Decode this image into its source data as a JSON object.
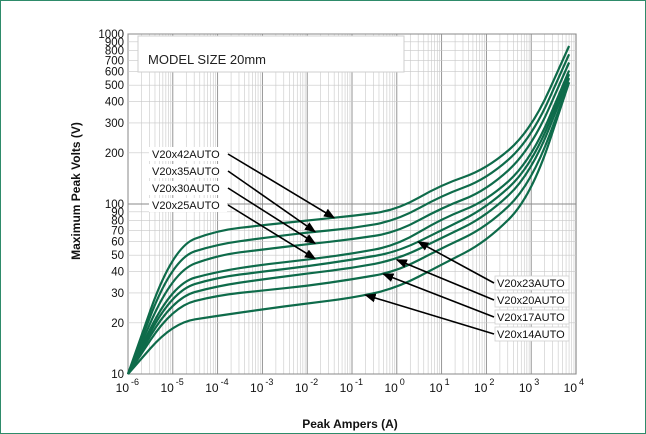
{
  "chart_data": {
    "type": "line",
    "title": "",
    "box_label": "MODEL SIZE 20mm",
    "xlabel": "Peak Ampers (A)",
    "ylabel": "Maximum Peak Volts (V)",
    "x_scale": "log",
    "y_scale": "log",
    "xlim": [
      1e-06,
      10000.0
    ],
    "ylim": [
      10,
      1000
    ],
    "grid": true,
    "line_color": "#0e6b4a",
    "frame_color": "#2e8b6a",
    "x_ticks": [
      {
        "v": 1e-06,
        "base": "10",
        "exp": "-6"
      },
      {
        "v": 1e-05,
        "base": "10",
        "exp": "-5"
      },
      {
        "v": 0.0001,
        "base": "10",
        "exp": "-4"
      },
      {
        "v": 0.001,
        "base": "10",
        "exp": "-3"
      },
      {
        "v": 0.01,
        "base": "10",
        "exp": "-2"
      },
      {
        "v": 0.1,
        "base": "10",
        "exp": "-1"
      },
      {
        "v": 1,
        "base": "10",
        "exp": "0"
      },
      {
        "v": 10,
        "base": "10",
        "exp": "1"
      },
      {
        "v": 100,
        "base": "10",
        "exp": "2"
      },
      {
        "v": 1000,
        "base": "10",
        "exp": "3"
      },
      {
        "v": 10000,
        "base": "10",
        "exp": "4"
      }
    ],
    "y_ticks": [
      {
        "v": 10,
        "label": "10"
      },
      {
        "v": 20,
        "label": "20"
      },
      {
        "v": 30,
        "label": "30"
      },
      {
        "v": 40,
        "label": "40"
      },
      {
        "v": 50,
        "label": "50"
      },
      {
        "v": 60,
        "label": "60"
      },
      {
        "v": 70,
        "label": "70"
      },
      {
        "v": 80,
        "label": "80"
      },
      {
        "v": 90,
        "label": "90"
      },
      {
        "v": 100,
        "label": "100"
      },
      {
        "v": 200,
        "label": "200"
      },
      {
        "v": 300,
        "label": "300"
      },
      {
        "v": 400,
        "label": "400"
      },
      {
        "v": 500,
        "label": "500"
      },
      {
        "v": 600,
        "label": "600"
      },
      {
        "v": 700,
        "label": "700"
      },
      {
        "v": 800,
        "label": "800"
      },
      {
        "v": 900,
        "label": "900"
      },
      {
        "v": 1000,
        "label": "1000"
      }
    ],
    "series": [
      {
        "name": "V20x42AUTO",
        "x": [
          1e-06,
          1e-05,
          0.0001,
          0.001,
          0.01,
          0.1,
          1,
          10,
          100,
          1000,
          7000
        ],
        "y": [
          10,
          56,
          70,
          75,
          80,
          85,
          92,
          130,
          160,
          270,
          850
        ],
        "label_side": "left",
        "label_anchor": 0.04,
        "label_order": 0
      },
      {
        "name": "V20x35AUTO",
        "x": [
          1e-06,
          1e-05,
          0.0001,
          0.001,
          0.01,
          0.1,
          1,
          10,
          100,
          1000,
          7000
        ],
        "y": [
          10,
          48,
          58,
          63,
          68,
          72,
          80,
          112,
          140,
          240,
          760
        ],
        "label_side": "left",
        "label_anchor": 0.015,
        "label_order": 1
      },
      {
        "name": "V20x30AUTO",
        "x": [
          1e-06,
          1e-05,
          0.0001,
          0.001,
          0.01,
          0.1,
          1,
          10,
          100,
          1000,
          7000
        ],
        "y": [
          10,
          40,
          50,
          54,
          58,
          62,
          68,
          95,
          120,
          210,
          680
        ],
        "label_side": "left",
        "label_anchor": 0.015,
        "label_order": 2
      },
      {
        "name": "V20x25AUTO",
        "x": [
          1e-06,
          1e-05,
          0.0001,
          0.001,
          0.01,
          0.1,
          1,
          10,
          100,
          1000,
          7000
        ],
        "y": [
          10,
          34,
          40,
          44,
          47,
          51,
          57,
          82,
          104,
          180,
          610
        ],
        "label_side": "left",
        "label_anchor": 0.015,
        "label_order": 3
      },
      {
        "name": "V20x23AUTO",
        "x": [
          1e-06,
          1e-05,
          0.0001,
          0.001,
          0.01,
          0.1,
          1,
          10,
          100,
          1000,
          7000
        ],
        "y": [
          10,
          31,
          37,
          40,
          43,
          47,
          52,
          70,
          95,
          165,
          580
        ],
        "label_side": "right",
        "label_anchor": 3,
        "label_order": 0
      },
      {
        "name": "V20x20AUTO",
        "x": [
          1e-06,
          1e-05,
          0.0001,
          0.001,
          0.01,
          0.1,
          1,
          10,
          100,
          1000,
          7000
        ],
        "y": [
          10,
          28,
          33,
          36,
          39,
          42,
          47,
          63,
          85,
          150,
          550
        ],
        "label_side": "right",
        "label_anchor": 1,
        "label_order": 1
      },
      {
        "name": "V20x17AUTO",
        "x": [
          1e-06,
          1e-05,
          0.0001,
          0.001,
          0.01,
          0.1,
          1,
          10,
          100,
          1000,
          7000
        ],
        "y": [
          10,
          25,
          29,
          31,
          33,
          36,
          40,
          55,
          73,
          130,
          520
        ],
        "label_side": "right",
        "label_anchor": 0.5,
        "label_order": 2
      },
      {
        "name": "V20x14AUTO",
        "x": [
          1e-06,
          1e-05,
          0.0001,
          0.001,
          0.01,
          0.1,
          1,
          10,
          100,
          1000,
          7000
        ],
        "y": [
          10,
          20,
          22,
          24,
          26,
          28,
          32,
          44,
          60,
          110,
          520
        ],
        "label_side": "right",
        "label_anchor": 0.2,
        "label_order": 3
      }
    ]
  }
}
